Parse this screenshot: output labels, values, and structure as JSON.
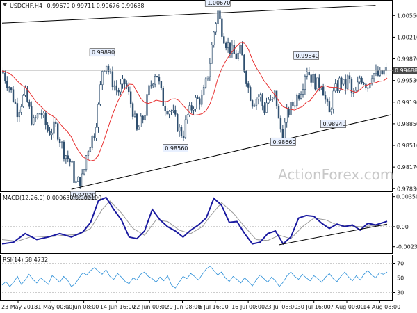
{
  "chart_data": {
    "type": "candlestick",
    "title": {
      "symbol": "USDCHF,H4",
      "ohlc": "0.99679 0.99711 0.99676 0.99688"
    },
    "watermark": "ActionForex.com",
    "colors": {
      "candle": "#2f4f6f",
      "ma": "#e83030",
      "trendline": "#000000",
      "macd": "#1a1aa0",
      "signal": "#999999",
      "rsi": "#2b8fd8",
      "priceBox": "#4a4a4a",
      "calloutBg": "#e8f0ff",
      "grid": "#bbbbbb"
    },
    "x_axis": {
      "labels": [
        "23 May 2018",
        "31 May 00:00",
        "7 Jun 08:00",
        "14 Jun 16:00",
        "22 Jun 00:00",
        "29 Jun 08:00",
        "6 Jul 16:00",
        "16 Jul 00:00",
        "23 Jul 08:00",
        "30 Jul 16:00",
        "7 Aug 00:00",
        "14 Aug 08:00"
      ],
      "range": [
        0,
        100
      ]
    },
    "price_panel": {
      "ylim": [
        0.978,
        1.0075
      ],
      "ticks": [
        "1.00550",
        "1.00210",
        "0.99870",
        "0.99530",
        "0.99190",
        "0.98850",
        "0.98510",
        "0.98170",
        "0.97830"
      ],
      "tick_values": [
        1.0055,
        1.0021,
        0.9987,
        0.9953,
        0.9919,
        0.9885,
        0.9851,
        0.9817,
        0.9783
      ],
      "current_price": "0.99688",
      "current_value": 0.99688,
      "callouts": [
        {
          "label": "0.97820",
          "x": 21,
          "y": 0.9782,
          "anchor": "below"
        },
        {
          "label": "0.99890",
          "x": 26,
          "y": 0.9989,
          "anchor": "above"
        },
        {
          "label": "0.98560",
          "x": 45,
          "y": 0.9856,
          "anchor": "below"
        },
        {
          "label": "1.00670",
          "x": 56,
          "y": 1.0067,
          "anchor": "above"
        },
        {
          "label": "0.98660",
          "x": 73,
          "y": 0.9866,
          "anchor": "below"
        },
        {
          "label": "0.99840",
          "x": 79,
          "y": 0.9984,
          "anchor": "above"
        },
        {
          "label": "0.98940",
          "x": 86,
          "y": 0.9894,
          "anchor": "below"
        }
      ],
      "upper_trendline": [
        [
          0,
          1.0043
        ],
        [
          97,
          1.0071
        ]
      ],
      "lower_trendline": [
        [
          18,
          0.9782
        ],
        [
          100,
          0.9899
        ]
      ],
      "close_path": [
        [
          0,
          0.9968
        ],
        [
          2,
          0.9942
        ],
        [
          4,
          0.9905
        ],
        [
          6,
          0.9932
        ],
        [
          8,
          0.9885
        ],
        [
          10,
          0.9905
        ],
        [
          12,
          0.9872
        ],
        [
          14,
          0.988
        ],
        [
          16,
          0.9842
        ],
        [
          18,
          0.9822
        ],
        [
          19,
          0.979
        ],
        [
          21,
          0.98
        ],
        [
          22,
          0.9842
        ],
        [
          24,
          0.9872
        ],
        [
          25,
          0.991
        ],
        [
          26,
          0.997
        ],
        [
          27,
          0.9982
        ],
        [
          28,
          0.996
        ],
        [
          30,
          0.9935
        ],
        [
          32,
          0.995
        ],
        [
          34,
          0.9905
        ],
        [
          35,
          0.9872
        ],
        [
          37,
          0.99
        ],
        [
          38,
          0.9935
        ],
        [
          40,
          0.997
        ],
        [
          41,
          0.994
        ],
        [
          42,
          0.9915
        ],
        [
          44,
          0.9905
        ],
        [
          46,
          0.9875
        ],
        [
          47,
          0.9868
        ],
        [
          48,
          0.9895
        ],
        [
          50,
          0.992
        ],
        [
          52,
          0.9925
        ],
        [
          53,
          0.995
        ],
        [
          54,
          0.9985
        ],
        [
          55,
          1.003
        ],
        [
          56,
          1.0062
        ],
        [
          57,
          1.0035
        ],
        [
          58,
          1.0015
        ],
        [
          60,
          0.9995
        ],
        [
          61,
          0.999
        ],
        [
          62,
          1.0
        ],
        [
          63,
          0.997
        ],
        [
          64,
          0.994
        ],
        [
          65,
          0.992
        ],
        [
          67,
          0.993
        ],
        [
          68,
          0.9905
        ],
        [
          69,
          0.9925
        ],
        [
          70,
          0.9915
        ],
        [
          71,
          0.9935
        ],
        [
          72,
          0.988
        ],
        [
          73,
          0.987
        ],
        [
          74,
          0.99
        ],
        [
          76,
          0.992
        ],
        [
          78,
          0.9945
        ],
        [
          79,
          0.9975
        ],
        [
          80,
          0.996
        ],
        [
          82,
          0.9945
        ],
        [
          83,
          0.9952
        ],
        [
          84,
          0.992
        ],
        [
          85,
          0.99
        ],
        [
          86,
          0.993
        ],
        [
          88,
          0.9955
        ],
        [
          89,
          0.994
        ],
        [
          90,
          0.996
        ],
        [
          91,
          0.9925
        ],
        [
          92,
          0.9935
        ],
        [
          93,
          0.996
        ],
        [
          95,
          0.9945
        ],
        [
          96,
          0.9965
        ],
        [
          98,
          0.996
        ],
        [
          100,
          0.99688
        ]
      ]
    },
    "macd_panel": {
      "label": "MACD(12,26,9) 0.000630 0.000190",
      "ylim": [
        -0.003,
        0.0038
      ],
      "ticks": [
        "0.003505",
        "0.00",
        "-0.002328"
      ],
      "tick_values": [
        0.003505,
        0.0,
        -0.002328
      ],
      "macd_path": [
        [
          0,
          -0.002
        ],
        [
          3,
          -0.0018
        ],
        [
          6,
          -0.0008
        ],
        [
          9,
          -0.0015
        ],
        [
          12,
          -0.0012
        ],
        [
          15,
          -0.0008
        ],
        [
          18,
          -0.0012
        ],
        [
          21,
          -0.0006
        ],
        [
          23,
          0.0005
        ],
        [
          25,
          0.003
        ],
        [
          27,
          0.0034
        ],
        [
          29,
          0.002
        ],
        [
          31,
          0.0008
        ],
        [
          33,
          -0.0012
        ],
        [
          35,
          -0.0014
        ],
        [
          37,
          -0.0005
        ],
        [
          39,
          0.002
        ],
        [
          41,
          0.0008
        ],
        [
          43,
          0.0
        ],
        [
          45,
          -0.0005
        ],
        [
          47,
          -0.0012
        ],
        [
          49,
          -0.0004
        ],
        [
          51,
          0.0002
        ],
        [
          53,
          0.001
        ],
        [
          55,
          0.0033
        ],
        [
          57,
          0.0025
        ],
        [
          59,
          0.0005
        ],
        [
          61,
          0.0006
        ],
        [
          63,
          -0.0008
        ],
        [
          65,
          -0.002
        ],
        [
          67,
          -0.0018
        ],
        [
          69,
          -0.0008
        ],
        [
          71,
          -0.0005
        ],
        [
          73,
          -0.002
        ],
        [
          75,
          -0.0012
        ],
        [
          77,
          0.001
        ],
        [
          79,
          0.0013
        ],
        [
          81,
          0.0012
        ],
        [
          83,
          0.0004
        ],
        [
          85,
          -0.0002
        ],
        [
          87,
          0.0003
        ],
        [
          89,
          0.0
        ],
        [
          91,
          0.0002
        ],
        [
          93,
          -0.0004
        ],
        [
          95,
          0.0004
        ],
        [
          97,
          0.0002
        ],
        [
          100,
          0.00063
        ]
      ],
      "signal_path": [
        [
          0,
          -0.0015
        ],
        [
          4,
          -0.0017
        ],
        [
          8,
          -0.0011
        ],
        [
          12,
          -0.0012
        ],
        [
          16,
          -0.001
        ],
        [
          20,
          -0.0009
        ],
        [
          23,
          -0.0002
        ],
        [
          26,
          0.002
        ],
        [
          28,
          0.003
        ],
        [
          31,
          0.0016
        ],
        [
          34,
          -0.0002
        ],
        [
          37,
          -0.001
        ],
        [
          40,
          0.0008
        ],
        [
          43,
          0.0006
        ],
        [
          46,
          -0.0004
        ],
        [
          49,
          -0.0008
        ],
        [
          52,
          0.0
        ],
        [
          54,
          0.0012
        ],
        [
          57,
          0.0028
        ],
        [
          60,
          0.0016
        ],
        [
          63,
          0.0
        ],
        [
          66,
          -0.0015
        ],
        [
          69,
          -0.0016
        ],
        [
          72,
          -0.001
        ],
        [
          75,
          -0.0014
        ],
        [
          78,
          0.0
        ],
        [
          81,
          0.001
        ],
        [
          84,
          0.0008
        ],
        [
          87,
          0.0002
        ],
        [
          90,
          0.0001
        ],
        [
          93,
          0.0
        ],
        [
          96,
          0.0001
        ],
        [
          100,
          0.00019
        ]
      ],
      "trendline": [
        [
          72,
          -0.0021
        ],
        [
          100,
          0.0003
        ]
      ]
    },
    "rsi_panel": {
      "label": "RSI(14) 58.4732",
      "ylim": [
        20,
        80
      ],
      "ticks": [
        "70",
        "50",
        "30"
      ],
      "tick_values": [
        70,
        50,
        30
      ],
      "rsi_path": [
        [
          0,
          40
        ],
        [
          1,
          45
        ],
        [
          2,
          38
        ],
        [
          3,
          44
        ],
        [
          4,
          52
        ],
        [
          5,
          41
        ],
        [
          6,
          47
        ],
        [
          7,
          55
        ],
        [
          8,
          48
        ],
        [
          9,
          43
        ],
        [
          10,
          50
        ],
        [
          11,
          46
        ],
        [
          12,
          41
        ],
        [
          13,
          53
        ],
        [
          14,
          49
        ],
        [
          15,
          44
        ],
        [
          16,
          52
        ],
        [
          17,
          47
        ],
        [
          18,
          38
        ],
        [
          19,
          42
        ],
        [
          20,
          50
        ],
        [
          21,
          57
        ],
        [
          22,
          54
        ],
        [
          23,
          60
        ],
        [
          24,
          64
        ],
        [
          25,
          59
        ],
        [
          26,
          55
        ],
        [
          27,
          61
        ],
        [
          28,
          52
        ],
        [
          29,
          48
        ],
        [
          30,
          56
        ],
        [
          31,
          51
        ],
        [
          32,
          45
        ],
        [
          33,
          42
        ],
        [
          34,
          50
        ],
        [
          35,
          47
        ],
        [
          36,
          55
        ],
        [
          37,
          58
        ],
        [
          38,
          52
        ],
        [
          39,
          49
        ],
        [
          40,
          44
        ],
        [
          41,
          51
        ],
        [
          42,
          46
        ],
        [
          43,
          53
        ],
        [
          44,
          40
        ],
        [
          45,
          36
        ],
        [
          46,
          44
        ],
        [
          47,
          52
        ],
        [
          48,
          49
        ],
        [
          49,
          56
        ],
        [
          50,
          52
        ],
        [
          51,
          47
        ],
        [
          52,
          55
        ],
        [
          53,
          62
        ],
        [
          54,
          66
        ],
        [
          55,
          60
        ],
        [
          56,
          54
        ],
        [
          57,
          58
        ],
        [
          58,
          50
        ],
        [
          59,
          45
        ],
        [
          60,
          52
        ],
        [
          61,
          48
        ],
        [
          62,
          43
        ],
        [
          63,
          50
        ],
        [
          64,
          45
        ],
        [
          65,
          39
        ],
        [
          66,
          47
        ],
        [
          67,
          54
        ],
        [
          68,
          49
        ],
        [
          69,
          44
        ],
        [
          70,
          51
        ],
        [
          71,
          46
        ],
        [
          72,
          38
        ],
        [
          73,
          44
        ],
        [
          74,
          53
        ],
        [
          75,
          58
        ],
        [
          76,
          52
        ],
        [
          77,
          48
        ],
        [
          78,
          55
        ],
        [
          79,
          50
        ],
        [
          80,
          46
        ],
        [
          81,
          53
        ],
        [
          82,
          49
        ],
        [
          83,
          44
        ],
        [
          84,
          51
        ],
        [
          85,
          56
        ],
        [
          86,
          49
        ],
        [
          87,
          45
        ],
        [
          88,
          52
        ],
        [
          89,
          58
        ],
        [
          90,
          51
        ],
        [
          91,
          46
        ],
        [
          92,
          53
        ],
        [
          93,
          47
        ],
        [
          94,
          55
        ],
        [
          95,
          60
        ],
        [
          96,
          54
        ],
        [
          97,
          50
        ],
        [
          98,
          57
        ],
        [
          99,
          55
        ],
        [
          100,
          58
        ]
      ]
    }
  }
}
